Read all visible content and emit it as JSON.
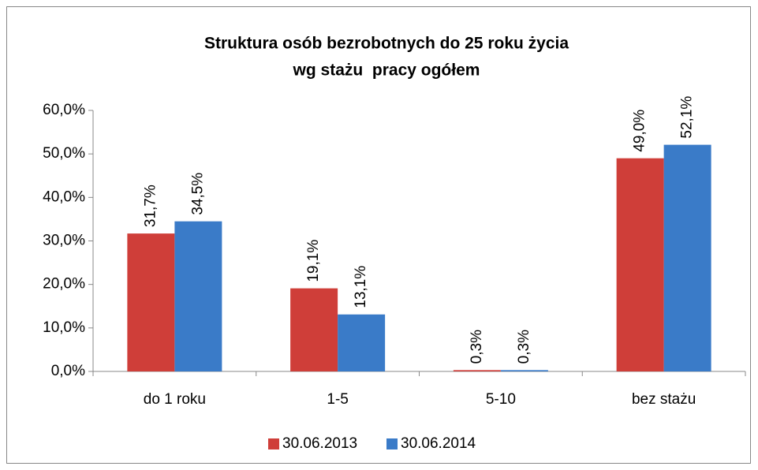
{
  "chart_data": {
    "type": "bar",
    "title": [
      "Struktura osób bezrobotnych do 25 roku życia",
      "wg stażu  pracy ogółem"
    ],
    "categories": [
      "do 1 roku",
      "1-5",
      "5-10",
      "bez stażu"
    ],
    "series": [
      {
        "name": "30.06.2013",
        "color": "#cf3e39",
        "values": [
          31.7,
          19.1,
          0.3,
          49.0
        ],
        "value_labels": [
          "31,7%",
          "19,1%",
          "0,3%",
          "49,0%"
        ]
      },
      {
        "name": "30.06.2014",
        "color": "#3a7bc8",
        "values": [
          34.5,
          13.1,
          0.3,
          52.1
        ],
        "value_labels": [
          "34,5%",
          "13,1%",
          "0,3%",
          "52,1%"
        ]
      }
    ],
    "ylim": [
      0,
      60
    ],
    "yticks": [
      {
        "value": 0,
        "label": "0,0%"
      },
      {
        "value": 10,
        "label": "10,0%"
      },
      {
        "value": 20,
        "label": "20,0%"
      },
      {
        "value": 30,
        "label": "30,0%"
      },
      {
        "value": 40,
        "label": "40,0%"
      },
      {
        "value": 50,
        "label": "50,0%"
      },
      {
        "value": 60,
        "label": "60,0%"
      }
    ],
    "grid": false,
    "legend": "bottom"
  }
}
